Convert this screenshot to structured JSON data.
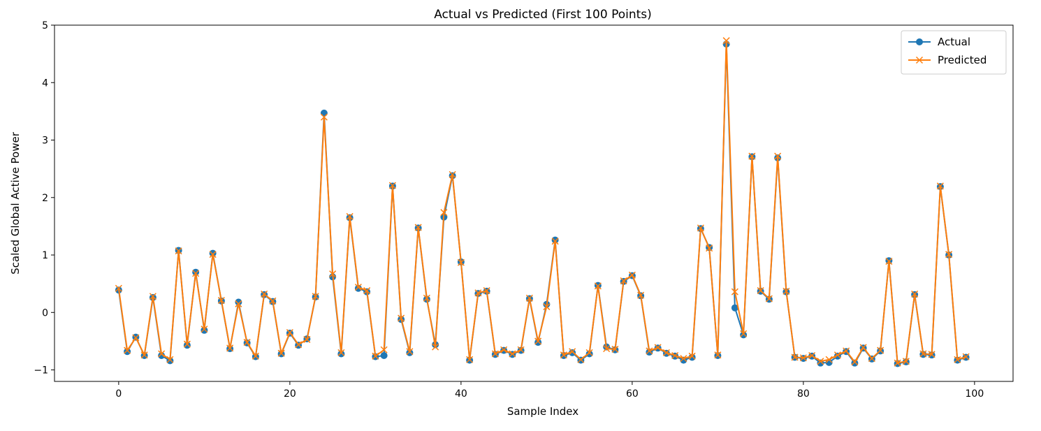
{
  "chart_data": {
    "type": "line",
    "title": "Actual vs Predicted (First 100 Points)",
    "xlabel": "Sample Index",
    "ylabel": "Scaled Global Active Power",
    "xlim": [
      -7.5,
      104.5
    ],
    "ylim": [
      -1.2,
      5.0
    ],
    "xticks": [
      0,
      20,
      40,
      60,
      80,
      100
    ],
    "yticks": [
      -1,
      0,
      1,
      2,
      3,
      4,
      5
    ],
    "grid": false,
    "legend_position": "top-right",
    "series": [
      {
        "name": "Actual",
        "color": "#1f77b4",
        "marker": "circle",
        "values": [
          0.39,
          -0.68,
          -0.43,
          -0.75,
          0.26,
          -0.75,
          -0.84,
          1.08,
          -0.57,
          0.7,
          -0.31,
          1.03,
          0.2,
          -0.63,
          0.18,
          -0.53,
          -0.77,
          0.31,
          0.19,
          -0.72,
          -0.36,
          -0.57,
          -0.46,
          0.27,
          3.47,
          0.62,
          -0.72,
          1.65,
          0.42,
          0.36,
          -0.77,
          -0.75,
          2.2,
          -0.12,
          -0.7,
          1.47,
          0.23,
          -0.56,
          1.66,
          2.38,
          0.88,
          -0.83,
          0.33,
          0.37,
          -0.73,
          -0.66,
          -0.73,
          -0.66,
          0.24,
          -0.52,
          0.14,
          1.26,
          -0.75,
          -0.7,
          -0.83,
          -0.72,
          0.47,
          -0.6,
          -0.65,
          0.54,
          0.64,
          0.29,
          -0.69,
          -0.62,
          -0.71,
          -0.76,
          -0.83,
          -0.78,
          1.46,
          1.13,
          -0.75,
          4.67,
          0.08,
          -0.39,
          2.71,
          0.37,
          0.23,
          2.69,
          0.36,
          -0.78,
          -0.8,
          -0.76,
          -0.88,
          -0.87,
          -0.76,
          -0.68,
          -0.88,
          -0.62,
          -0.81,
          -0.67,
          0.9,
          -0.89,
          -0.86,
          0.31,
          -0.73,
          -0.74,
          2.19,
          1.0,
          -0.83,
          -0.78
        ]
      },
      {
        "name": "Predicted",
        "color": "#ff7f0e",
        "marker": "x",
        "values": [
          0.42,
          -0.66,
          -0.44,
          -0.74,
          0.28,
          -0.72,
          -0.82,
          1.07,
          -0.55,
          0.68,
          -0.29,
          1.01,
          0.21,
          -0.62,
          0.15,
          -0.52,
          -0.76,
          0.32,
          0.2,
          -0.71,
          -0.35,
          -0.56,
          -0.47,
          0.28,
          3.4,
          0.67,
          -0.7,
          1.67,
          0.44,
          0.38,
          -0.76,
          -0.65,
          2.21,
          -0.1,
          -0.68,
          1.48,
          0.25,
          -0.6,
          1.74,
          2.4,
          0.87,
          -0.82,
          0.34,
          0.38,
          -0.72,
          -0.65,
          -0.72,
          -0.65,
          0.25,
          -0.5,
          0.1,
          1.24,
          -0.74,
          -0.68,
          -0.82,
          -0.7,
          0.46,
          -0.63,
          -0.64,
          0.55,
          0.65,
          0.3,
          -0.67,
          -0.61,
          -0.7,
          -0.75,
          -0.8,
          -0.76,
          1.47,
          1.12,
          -0.74,
          4.73,
          0.36,
          -0.37,
          2.72,
          0.38,
          0.24,
          2.72,
          0.37,
          -0.78,
          -0.79,
          -0.75,
          -0.85,
          -0.82,
          -0.74,
          -0.67,
          -0.86,
          -0.61,
          -0.8,
          -0.66,
          0.89,
          -0.88,
          -0.85,
          0.32,
          -0.72,
          -0.73,
          2.2,
          1.01,
          -0.82,
          -0.77
        ]
      }
    ]
  }
}
